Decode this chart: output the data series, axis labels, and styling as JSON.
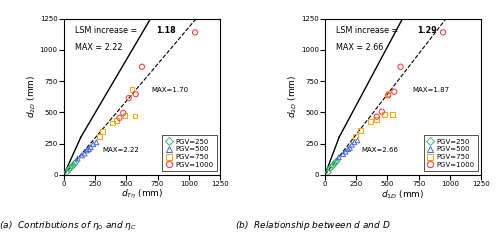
{
  "subplot_a": {
    "lsm_text": "LSM increase = ",
    "lsm_value": "1.18",
    "max_text": "MAX = 2.22",
    "xlabel": "$d_{T\\eta}$ (mm)",
    "ylabel": "$d_{2D}$ (mm)",
    "xlim": [
      0,
      1250
    ],
    "ylim": [
      0,
      1250
    ],
    "xticks": [
      0,
      250,
      500,
      750,
      1000,
      1250
    ],
    "yticks": [
      0,
      250,
      500,
      750,
      1000,
      1250
    ],
    "lsm_slope": 1.18,
    "max_slope_lower": 2.22,
    "max_slope_upper": 1.7,
    "kink_x": 250,
    "kink_y": 300,
    "max_upper_label": "MAX=1.70",
    "max_upper_x": 700,
    "max_upper_y": 680,
    "max_lower_label": "MAX=2.22",
    "max_lower_x": 310,
    "max_lower_y": 220,
    "caption": "(a)  Contributions of $\\eta_0$ and $\\eta_C$",
    "pgv250_x": [
      25,
      40,
      55,
      65,
      75,
      85,
      95
    ],
    "pgv250_y": [
      20,
      45,
      55,
      65,
      75,
      90,
      100
    ],
    "pgv500_x": [
      110,
      145,
      165,
      185,
      200,
      215,
      235,
      260
    ],
    "pgv500_y": [
      130,
      155,
      170,
      195,
      205,
      220,
      245,
      260
    ],
    "pgv750_x": [
      285,
      310,
      390,
      420,
      490,
      545,
      570
    ],
    "pgv750_y": [
      305,
      345,
      415,
      435,
      475,
      685,
      470
    ],
    "pgv1000_x": [
      445,
      475,
      520,
      575,
      625,
      1050
    ],
    "pgv1000_y": [
      455,
      495,
      615,
      645,
      865,
      1140
    ]
  },
  "subplot_b": {
    "lsm_text": "LSM increase = ",
    "lsm_value": "1.29",
    "max_text": "MAX = 2.66",
    "xlabel": "$d_{1D}$ (mm)",
    "ylabel": "$d_{2D}$ (mm)",
    "xlim": [
      0,
      1250
    ],
    "ylim": [
      0,
      1250
    ],
    "xticks": [
      0,
      250,
      500,
      750,
      1000,
      1250
    ],
    "yticks": [
      0,
      250,
      500,
      750,
      1000,
      1250
    ],
    "lsm_slope": 1.29,
    "max_slope_lower": 2.66,
    "max_slope_upper": 1.87,
    "kink_x": 250,
    "kink_y": 300,
    "max_upper_label": "MAX=1.87",
    "max_upper_x": 700,
    "max_upper_y": 680,
    "max_lower_label": "MAX=2.66",
    "max_lower_x": 295,
    "max_lower_y": 220,
    "caption": "(b)  Relationship between $d$ and $D$",
    "pgv250_x": [
      25,
      40,
      55,
      65,
      75,
      85,
      95
    ],
    "pgv250_y": [
      20,
      50,
      65,
      75,
      88,
      100,
      110
    ],
    "pgv500_x": [
      110,
      145,
      165,
      185,
      200,
      215,
      235,
      260
    ],
    "pgv500_y": [
      140,
      165,
      185,
      205,
      215,
      240,
      260,
      275
    ],
    "pgv750_x": [
      245,
      285,
      365,
      415,
      475,
      505,
      540
    ],
    "pgv750_y": [
      305,
      355,
      425,
      445,
      485,
      650,
      485
    ],
    "pgv1000_x": [
      415,
      455,
      505,
      555,
      605,
      945
    ],
    "pgv1000_y": [
      465,
      505,
      635,
      665,
      865,
      1140
    ]
  },
  "colors": {
    "pgv250": "#3CB371",
    "pgv500": "#4169E1",
    "pgv750": "#FFA500",
    "pgv1000": "#FF4444"
  }
}
